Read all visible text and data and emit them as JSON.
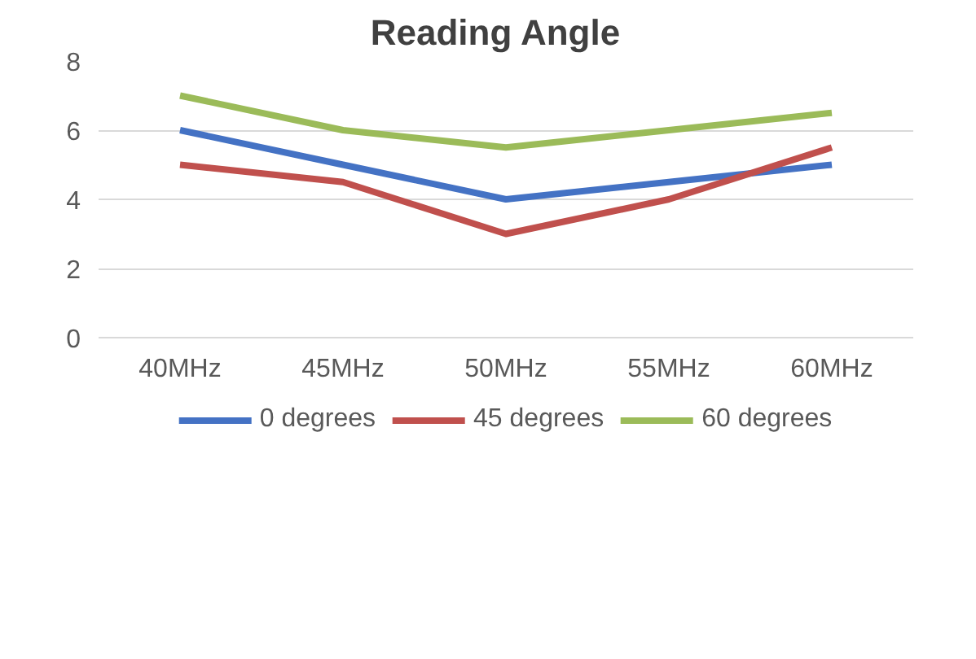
{
  "chart_data": {
    "type": "line",
    "title": "Reading   Angle",
    "categories": [
      "40MHz",
      "45MHz",
      "50MHz",
      "55MHz",
      "60MHz"
    ],
    "series": [
      {
        "name": "0 degrees",
        "color": "#4472c4",
        "values": [
          6,
          5,
          4,
          4.5,
          5
        ]
      },
      {
        "name": "45 degrees",
        "color": "#c0504d",
        "values": [
          5,
          4.5,
          3,
          4,
          5.5
        ]
      },
      {
        "name": "60 degrees",
        "color": "#9bbb59",
        "values": [
          7,
          6,
          5.5,
          6,
          6.5
        ]
      }
    ],
    "ylim": [
      0,
      8
    ],
    "yticks": [
      0,
      2,
      4,
      6,
      8
    ],
    "grid": "y",
    "legend": "bottom",
    "marker": "none",
    "line_style": "solid"
  }
}
